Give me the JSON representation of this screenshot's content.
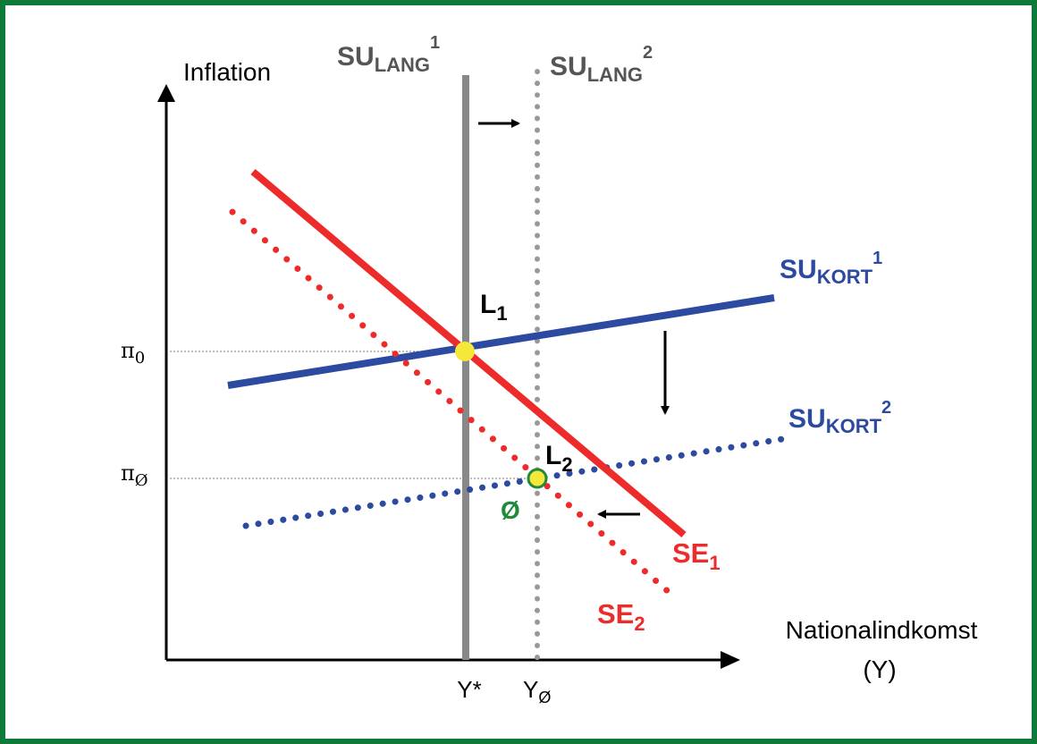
{
  "axes": {
    "y_title": "Inflation",
    "x_title_line1": "Nationalindkomst",
    "x_title_line2": "(Y)",
    "x_ticks": {
      "y_star": "Y*",
      "y_oe_main": "Y",
      "y_oe_sub": "Ø"
    },
    "y_ticks": {
      "pi0_main": "π",
      "pi0_sub": "0",
      "pioe_main": "π",
      "pioe_sub": "Ø"
    }
  },
  "curves": {
    "su_lang_1": {
      "main": "SU",
      "sub": "LANG",
      "sup": "1",
      "color": "#888888",
      "style": "solid"
    },
    "su_lang_2": {
      "main": "SU",
      "sub": "LANG",
      "sup": "2",
      "color": "#999999",
      "style": "dotted"
    },
    "su_kort_1": {
      "main": "SU",
      "sub": "KORT",
      "sup": "1",
      "color": "#2b4aa0",
      "style": "solid"
    },
    "su_kort_2": {
      "main": "SU",
      "sub": "KORT",
      "sup": "2",
      "color": "#2b4aa0",
      "style": "dotted"
    },
    "se_1": {
      "main": "SE",
      "sub": "1",
      "color": "#ee2b2b",
      "style": "solid"
    },
    "se_2": {
      "main": "SE",
      "sub": "2",
      "color": "#ee2b2b",
      "style": "dotted"
    }
  },
  "points": {
    "l1": {
      "main": "L",
      "sub": "1"
    },
    "l2": {
      "main": "L",
      "sub": "2"
    },
    "oe": {
      "label": "Ø",
      "color": "#1f8a3a"
    }
  },
  "colors": {
    "frame": "#0e7a3a",
    "axis": "#000000",
    "equilibrium_fill": "#f6e83a"
  }
}
